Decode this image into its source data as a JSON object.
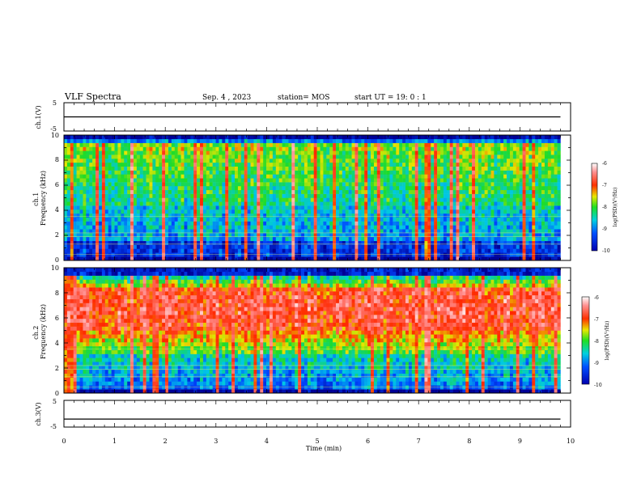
{
  "header": {
    "title": "VLF Spectra",
    "date": "Sep. 4  , 2023",
    "station": "station= MOS",
    "start": "start  UT =   19: 0   : 1"
  },
  "chart_data": [
    {
      "type": "line",
      "panel": "ch1-voltage",
      "ylabel": "ch.1(V)",
      "ylim": [
        -5,
        5
      ],
      "yticks": [
        "5",
        "-5"
      ],
      "series": [
        {
          "x": [
            0,
            9.8
          ],
          "values": [
            0,
            0
          ]
        }
      ]
    },
    {
      "type": "heatmap",
      "panel": "ch1-spectrogram",
      "ylabel": "ch.1\nFrequency (kHz)",
      "ylim": [
        0,
        10
      ],
      "xlim": [
        0,
        10
      ],
      "yticks": [
        "0",
        "2",
        "4",
        "6",
        "8",
        "10"
      ],
      "data_extent_min": 9.8,
      "colorbar": {
        "label": "log(PSD)(V²/Hz)",
        "ticks": [
          "-6",
          "-7",
          "-8",
          "-9",
          "-10"
        ],
        "range": [
          -10,
          -6
        ]
      }
    },
    {
      "type": "heatmap",
      "panel": "ch2-spectrogram",
      "ylabel": "ch.2\nFrequency (kHz)",
      "ylim": [
        0,
        10
      ],
      "xlim": [
        0,
        10
      ],
      "yticks": [
        "0",
        "2",
        "4",
        "6",
        "8",
        "10"
      ],
      "data_extent_min": 9.8,
      "colorbar": {
        "label": "log(PSD)(V²/Hz)",
        "ticks": [
          "-6",
          "-7",
          "-8",
          "-9",
          "-10"
        ],
        "range": [
          -10,
          -6
        ]
      }
    },
    {
      "type": "line",
      "panel": "ch3-voltage",
      "ylabel": "ch.3(V)",
      "ylim": [
        -5,
        5
      ],
      "yticks": [
        "5",
        "-5"
      ],
      "xlabel": "Time  (min)",
      "xticks": [
        "0",
        "1",
        "2",
        "3",
        "4",
        "5",
        "6",
        "7",
        "8",
        "9",
        "10"
      ],
      "series": [
        {
          "x": [
            0,
            9.8
          ],
          "values": [
            -2,
            -2
          ]
        }
      ]
    }
  ]
}
